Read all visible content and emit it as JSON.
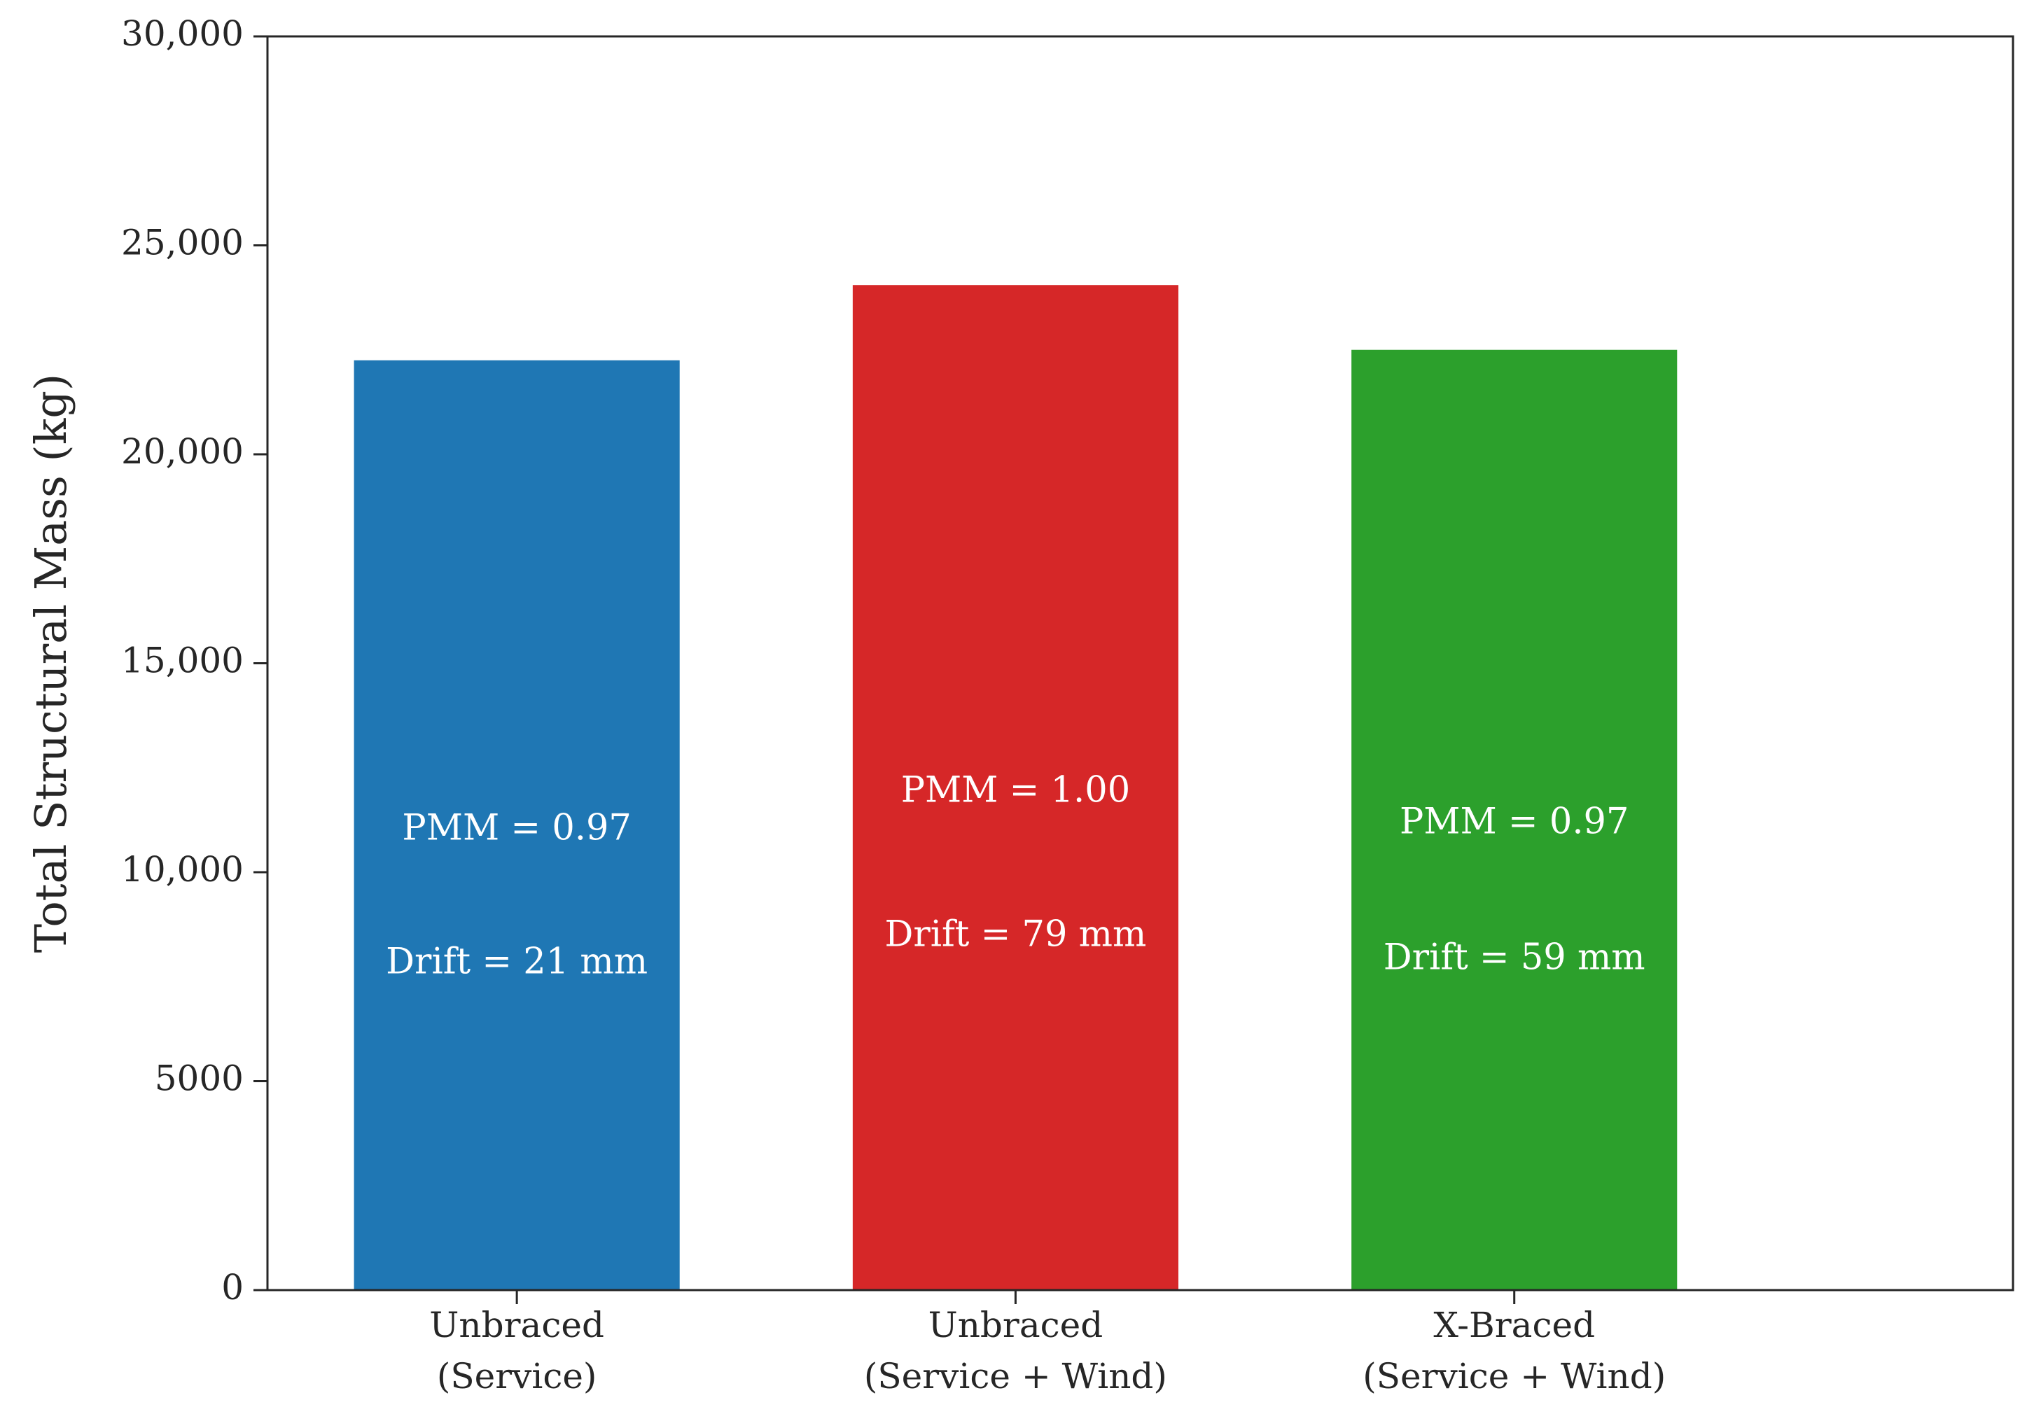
{
  "chart_data": {
    "type": "bar",
    "categories": [
      [
        "Unbraced",
        "(Service)"
      ],
      [
        "Unbraced",
        "(Service + Wind)"
      ],
      [
        "X-Braced",
        "(Service + Wind)"
      ]
    ],
    "values": [
      22250,
      24050,
      22500
    ],
    "colors": [
      "#1f77b4",
      "#d62728",
      "#2ca02c"
    ],
    "annotations": [
      {
        "pmm": "PMM = 0.97",
        "pmm_value": 0.97,
        "drift": "Drift = 21 mm",
        "drift_value": 21,
        "pmm_y": 11000,
        "drift_y": 7800
      },
      {
        "pmm": "PMM = 1.00",
        "pmm_value": 1.0,
        "drift": "Drift = 79 mm",
        "drift_value": 79,
        "pmm_y": 11900,
        "drift_y": 8450
      },
      {
        "pmm": "PMM = 0.97",
        "pmm_value": 0.97,
        "drift": "Drift = 59 mm",
        "drift_value": 59,
        "pmm_y": 11150,
        "drift_y": 7900
      }
    ],
    "ylabel": "Total Structural Mass (kg)",
    "xlabel": "",
    "ylim": [
      0,
      30000
    ],
    "yticks": [
      {
        "value": 0,
        "label": "0"
      },
      {
        "value": 5000,
        "label": "5000"
      },
      {
        "value": 10000,
        "label": "10,000"
      },
      {
        "value": 15000,
        "label": "15,000"
      },
      {
        "value": 20000,
        "label": "20,000"
      },
      {
        "value": 25000,
        "label": "25,000"
      },
      {
        "value": 30000,
        "label": "30,000"
      }
    ],
    "grid": false,
    "legend": "none"
  }
}
